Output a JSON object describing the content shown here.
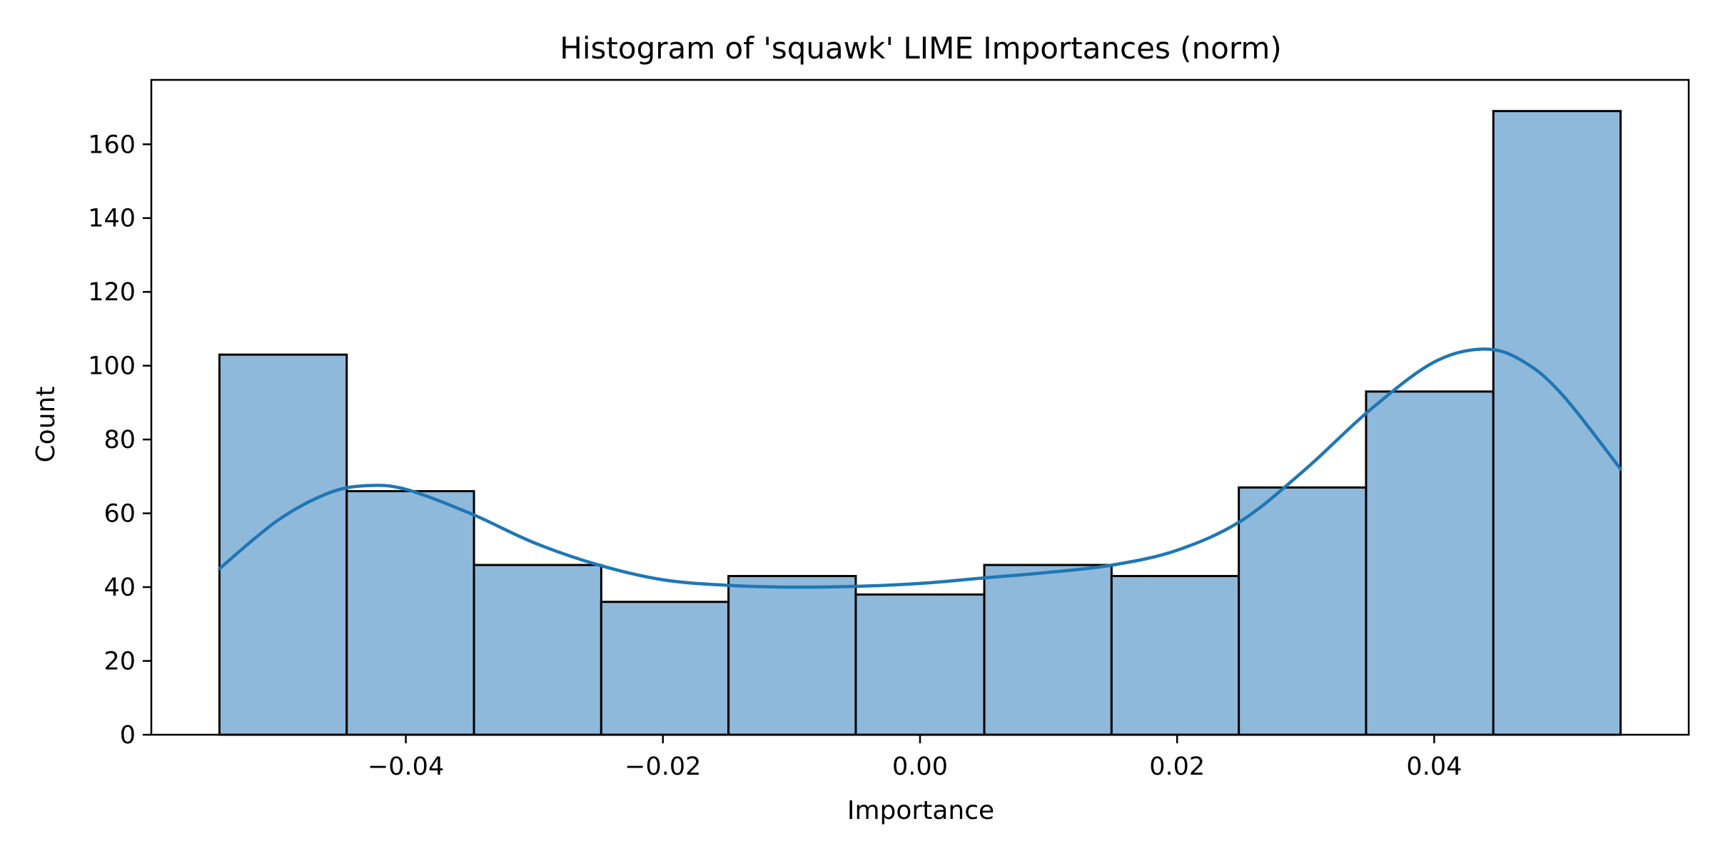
{
  "chart_data": {
    "type": "histogram",
    "title": "Histogram of 'squawk' LIME Importances (norm)",
    "xlabel": "Importance",
    "ylabel": "Count",
    "xlim": [
      -0.0598,
      0.0598
    ],
    "ylim": [
      0,
      177.45
    ],
    "xticks": [
      -0.04,
      -0.02,
      0.0,
      0.02,
      0.04
    ],
    "xtick_labels": [
      "−0.04",
      "−0.02",
      "0.00",
      "0.02",
      "0.04"
    ],
    "yticks": [
      0,
      20,
      40,
      60,
      80,
      100,
      120,
      140,
      160
    ],
    "ytick_labels": [
      "0",
      "20",
      "40",
      "60",
      "80",
      "100",
      "120",
      "140",
      "160"
    ],
    "bin_edges": [
      -0.0545,
      -0.0446,
      -0.0347,
      -0.0248,
      -0.0149,
      -0.005,
      0.005,
      0.0149,
      0.0248,
      0.0347,
      0.0446,
      0.0545
    ],
    "counts": [
      103,
      66,
      46,
      36,
      43,
      38,
      46,
      43,
      67,
      93,
      169
    ],
    "kde": {
      "x": [
        -0.0545,
        -0.05,
        -0.046,
        -0.043,
        -0.04,
        -0.035,
        -0.03,
        -0.025,
        -0.02,
        -0.015,
        -0.01,
        -0.005,
        0.0,
        0.005,
        0.01,
        0.015,
        0.02,
        0.025,
        0.03,
        0.035,
        0.04,
        0.044,
        0.047,
        0.05,
        0.0545
      ],
      "y": [
        45,
        58,
        65.5,
        67.5,
        66.5,
        60,
        52,
        46,
        42,
        40.5,
        40,
        40.2,
        41,
        42.5,
        44,
        46,
        50,
        58,
        72,
        88,
        101,
        104.5,
        101,
        92,
        72
      ]
    },
    "colors": {
      "bar_fill": "#8fb9da",
      "bar_edge": "#000000",
      "kde_line": "#1f77b4"
    },
    "grid": false,
    "legend": "none"
  }
}
